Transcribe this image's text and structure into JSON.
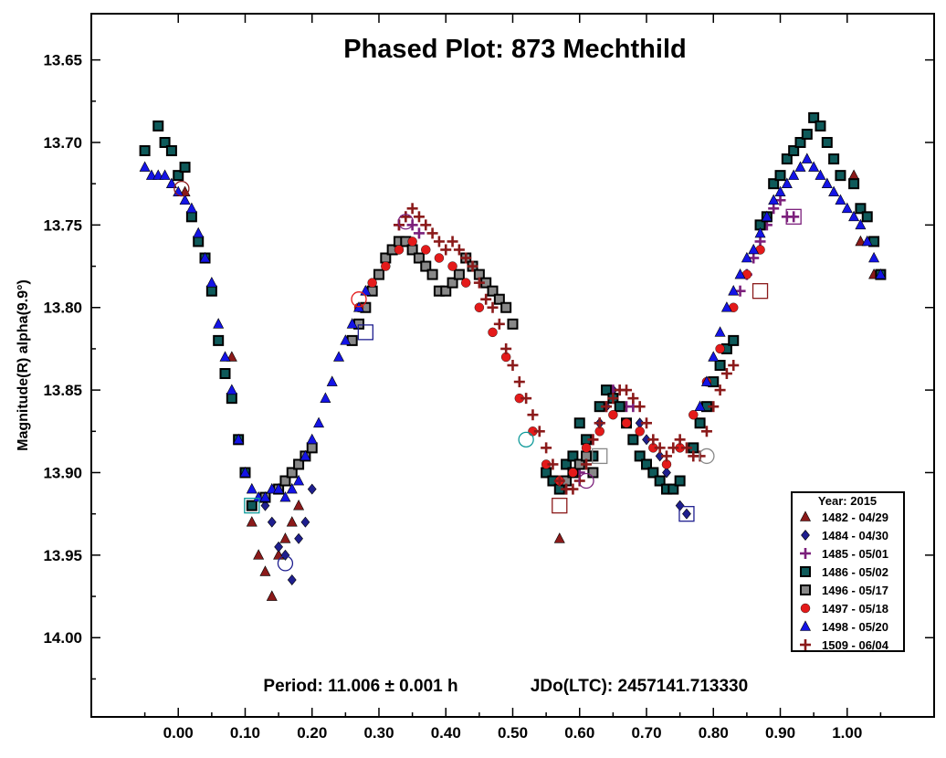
{
  "chart_data": {
    "type": "scatter",
    "title": "Phased Plot: 873 Mechthild",
    "xlabel": "",
    "ylabel": "Magnitude(R) alpha(9.9°)",
    "xlim": [
      -0.13,
      1.13
    ],
    "ylim": [
      13.622,
      14.048
    ],
    "y_inverted": true,
    "x_ticks": [
      "0.00",
      "0.10",
      "0.20",
      "0.30",
      "0.40",
      "0.50",
      "0.60",
      "0.70",
      "0.80",
      "0.90",
      "1.00"
    ],
    "y_ticks": [
      "13.65",
      "13.70",
      "13.75",
      "13.80",
      "13.85",
      "13.90",
      "13.95",
      "14.00"
    ],
    "grid": false,
    "legend_position": "bottom-right",
    "legend_title": "Year: 2015",
    "period_label": "Period: 11.006 ± 0.001 h",
    "epoch_label": "JDo(LTC): 2457141.713330",
    "series": [
      {
        "name": "1482 - 04/29",
        "marker": "triangle",
        "color": "#8b1a1a",
        "x": [
          0.01,
          0.03,
          0.05,
          0.08,
          0.11,
          0.12,
          0.13,
          0.14,
          0.15,
          0.16,
          0.17,
          0.18,
          1.01,
          1.02,
          1.04,
          0.57
        ],
        "y": [
          13.73,
          13.76,
          13.79,
          13.83,
          13.93,
          13.95,
          13.96,
          13.975,
          13.95,
          13.94,
          13.93,
          13.92,
          13.72,
          13.76,
          13.78,
          13.94
        ]
      },
      {
        "name": "1484 - 04/30",
        "marker": "diamond",
        "color": "#1f1f8f",
        "x": [
          0.13,
          0.14,
          0.15,
          0.16,
          0.17,
          0.18,
          0.19,
          0.2,
          0.63,
          0.64,
          0.65,
          0.66,
          0.67,
          0.68,
          0.69,
          0.7,
          0.72,
          0.73,
          0.74,
          0.75,
          0.76
        ],
        "y": [
          13.92,
          13.93,
          13.945,
          13.95,
          13.965,
          13.94,
          13.93,
          13.91,
          13.87,
          13.86,
          13.85,
          13.86,
          13.87,
          13.88,
          13.87,
          13.88,
          13.89,
          13.9,
          13.91,
          13.92,
          13.925
        ]
      },
      {
        "name": "1485 - 05/01",
        "marker": "plus",
        "color": "#7b1f7b",
        "x": [
          0.33,
          0.34,
          0.35,
          0.36,
          0.58,
          0.6,
          0.62,
          0.63,
          0.64,
          0.65,
          0.66,
          0.67,
          0.68,
          0.84,
          0.85,
          0.86,
          0.87,
          0.88,
          0.89,
          0.9,
          0.91,
          0.92
        ],
        "y": [
          13.75,
          13.745,
          13.75,
          13.755,
          13.91,
          13.9,
          13.88,
          13.87,
          13.86,
          13.85,
          13.85,
          13.86,
          13.86,
          13.79,
          13.78,
          13.77,
          13.76,
          13.75,
          13.74,
          13.735,
          13.745,
          13.745
        ]
      },
      {
        "name": "1486 - 05/02",
        "marker": "square",
        "color": "#0e5a5a",
        "x": [
          -0.05,
          -0.03,
          -0.02,
          -0.01,
          0.0,
          0.01,
          0.02,
          0.03,
          0.04,
          0.05,
          0.06,
          0.07,
          0.08,
          0.09,
          0.1,
          0.11,
          0.55,
          0.56,
          0.57,
          0.58,
          0.59,
          0.6,
          0.61,
          0.62,
          0.63,
          0.64,
          0.65,
          0.66,
          0.67,
          0.68,
          0.69,
          0.7,
          0.71,
          0.72,
          0.73,
          0.74,
          0.75,
          0.77,
          0.78,
          0.79,
          0.8,
          0.81,
          0.82,
          0.83,
          0.87,
          0.88,
          0.89,
          0.9,
          0.91,
          0.92,
          0.93,
          0.94,
          0.95,
          0.96,
          0.97,
          0.98,
          0.99,
          1.01,
          1.02,
          1.03,
          1.04,
          1.05
        ],
        "y": [
          13.705,
          13.69,
          13.7,
          13.705,
          13.72,
          13.715,
          13.745,
          13.76,
          13.77,
          13.79,
          13.82,
          13.84,
          13.855,
          13.88,
          13.9,
          13.92,
          13.9,
          13.905,
          13.91,
          13.895,
          13.89,
          13.87,
          13.88,
          13.89,
          13.86,
          13.85,
          13.855,
          13.86,
          13.87,
          13.88,
          13.89,
          13.895,
          13.9,
          13.905,
          13.91,
          13.91,
          13.905,
          13.885,
          13.87,
          13.86,
          13.845,
          13.835,
          13.825,
          13.82,
          13.75,
          13.745,
          13.725,
          13.72,
          13.71,
          13.705,
          13.7,
          13.695,
          13.685,
          13.69,
          13.7,
          13.71,
          13.72,
          13.725,
          13.74,
          13.745,
          13.76,
          13.78
        ]
      },
      {
        "name": "1496 - 05/17",
        "marker": "square",
        "color": "#888888",
        "x": [
          0.13,
          0.15,
          0.16,
          0.17,
          0.18,
          0.19,
          0.2,
          0.26,
          0.27,
          0.28,
          0.29,
          0.3,
          0.31,
          0.32,
          0.33,
          0.34,
          0.35,
          0.36,
          0.37,
          0.38,
          0.39,
          0.4,
          0.41,
          0.42,
          0.43,
          0.44,
          0.45,
          0.46,
          0.47,
          0.48,
          0.49,
          0.5,
          0.58,
          0.59,
          0.6,
          0.61,
          0.62
        ],
        "y": [
          13.915,
          13.91,
          13.905,
          13.9,
          13.895,
          13.89,
          13.885,
          13.82,
          13.81,
          13.8,
          13.79,
          13.78,
          13.77,
          13.765,
          13.76,
          13.76,
          13.765,
          13.77,
          13.775,
          13.78,
          13.79,
          13.79,
          13.785,
          13.78,
          13.77,
          13.775,
          13.78,
          13.785,
          13.79,
          13.795,
          13.8,
          13.81,
          13.905,
          13.9,
          13.895,
          13.89,
          13.9
        ]
      },
      {
        "name": "1497 - 05/18",
        "marker": "circle",
        "color": "#e41a1a",
        "x": [
          0.27,
          0.29,
          0.31,
          0.33,
          0.35,
          0.37,
          0.39,
          0.41,
          0.43,
          0.45,
          0.47,
          0.49,
          0.51,
          0.53,
          0.55,
          0.57,
          0.59,
          0.61,
          0.63,
          0.65,
          0.67,
          0.69,
          0.71,
          0.73,
          0.75,
          0.77,
          0.79,
          0.81,
          0.83,
          0.85,
          0.87
        ],
        "y": [
          13.8,
          13.785,
          13.775,
          13.765,
          13.76,
          13.765,
          13.77,
          13.775,
          13.785,
          13.8,
          13.815,
          13.83,
          13.855,
          13.875,
          13.895,
          13.905,
          13.9,
          13.885,
          13.875,
          13.865,
          13.87,
          13.875,
          13.885,
          13.895,
          13.885,
          13.865,
          13.845,
          13.825,
          13.8,
          13.78,
          13.765
        ]
      },
      {
        "name": "1498 - 05/20",
        "marker": "triangle",
        "color": "#1414e6",
        "x": [
          -0.05,
          -0.04,
          -0.03,
          -0.02,
          -0.01,
          0.0,
          0.01,
          0.02,
          0.03,
          0.04,
          0.05,
          0.06,
          0.07,
          0.08,
          0.09,
          0.1,
          0.11,
          0.12,
          0.13,
          0.14,
          0.15,
          0.16,
          0.17,
          0.18,
          0.19,
          0.2,
          0.21,
          0.22,
          0.23,
          0.24,
          0.25,
          0.26,
          0.27,
          0.28,
          0.78,
          0.79,
          0.8,
          0.81,
          0.82,
          0.83,
          0.84,
          0.85,
          0.86,
          0.87,
          0.88,
          0.89,
          0.9,
          0.91,
          0.92,
          0.93,
          0.94,
          0.95,
          0.96,
          0.97,
          0.98,
          0.99,
          1.0,
          1.01,
          1.02,
          1.03,
          1.04,
          1.05
        ],
        "y": [
          13.715,
          13.72,
          13.72,
          13.72,
          13.725,
          13.73,
          13.735,
          13.74,
          13.755,
          13.77,
          13.785,
          13.81,
          13.83,
          13.85,
          13.88,
          13.9,
          13.91,
          13.915,
          13.915,
          13.91,
          13.91,
          13.915,
          13.91,
          13.905,
          13.89,
          13.88,
          13.87,
          13.855,
          13.845,
          13.83,
          13.82,
          13.81,
          13.8,
          13.79,
          13.86,
          13.845,
          13.83,
          13.815,
          13.8,
          13.79,
          13.78,
          13.77,
          13.765,
          13.755,
          13.745,
          13.735,
          13.73,
          13.725,
          13.72,
          13.715,
          13.71,
          13.715,
          13.72,
          13.725,
          13.73,
          13.735,
          13.74,
          13.745,
          13.75,
          13.76,
          13.77,
          13.78
        ]
      },
      {
        "name": "1509 - 06/04",
        "marker": "plus",
        "color": "#8b1a1a",
        "x": [
          0.33,
          0.34,
          0.35,
          0.36,
          0.37,
          0.38,
          0.39,
          0.4,
          0.41,
          0.42,
          0.43,
          0.44,
          0.45,
          0.46,
          0.47,
          0.48,
          0.49,
          0.5,
          0.51,
          0.52,
          0.53,
          0.54,
          0.55,
          0.56,
          0.57,
          0.58,
          0.59,
          0.6,
          0.61,
          0.62,
          0.63,
          0.64,
          0.65,
          0.66,
          0.67,
          0.68,
          0.69,
          0.7,
          0.71,
          0.72,
          0.73,
          0.74,
          0.75,
          0.76,
          0.77,
          0.78,
          0.79,
          0.8,
          0.81,
          0.82,
          0.83
        ],
        "y": [
          13.75,
          13.745,
          13.74,
          13.745,
          13.75,
          13.755,
          13.76,
          13.765,
          13.76,
          13.765,
          13.77,
          13.775,
          13.785,
          13.795,
          13.8,
          13.81,
          13.825,
          13.835,
          13.845,
          13.855,
          13.865,
          13.875,
          13.885,
          13.895,
          13.905,
          13.91,
          13.91,
          13.905,
          13.895,
          13.88,
          13.87,
          13.86,
          13.855,
          13.85,
          13.85,
          13.855,
          13.86,
          13.87,
          13.88,
          13.885,
          13.89,
          13.885,
          13.88,
          13.885,
          13.89,
          13.89,
          13.875,
          13.86,
          13.85,
          13.84,
          13.835
        ]
      }
    ],
    "highlighted": [
      {
        "x": 0.005,
        "y": 13.728,
        "marker": "circle",
        "color": "#8b1a1a"
      },
      {
        "x": 0.16,
        "y": 13.955,
        "marker": "circle",
        "color": "#1f1f8f"
      },
      {
        "x": 0.11,
        "y": 13.92,
        "marker": "square",
        "color": "#0e9a9a"
      },
      {
        "x": 0.28,
        "y": 13.815,
        "marker": "square",
        "color": "#1f1f8f"
      },
      {
        "x": 0.27,
        "y": 13.795,
        "marker": "circle",
        "color": "#e41a1a"
      },
      {
        "x": 0.34,
        "y": 13.748,
        "marker": "circle",
        "color": "#7b1f7b"
      },
      {
        "x": 0.52,
        "y": 13.88,
        "marker": "circle",
        "color": "#0e9a9a"
      },
      {
        "x": 0.57,
        "y": 13.92,
        "marker": "square",
        "color": "#8b1a1a"
      },
      {
        "x": 0.63,
        "y": 13.89,
        "marker": "square",
        "color": "#888888"
      },
      {
        "x": 0.61,
        "y": 13.905,
        "marker": "circle",
        "color": "#7b1f7b"
      },
      {
        "x": 0.76,
        "y": 13.925,
        "marker": "square",
        "color": "#1f1f8f"
      },
      {
        "x": 0.79,
        "y": 13.89,
        "marker": "circle",
        "color": "#888888"
      },
      {
        "x": 0.87,
        "y": 13.79,
        "marker": "square",
        "color": "#8b1a1a"
      },
      {
        "x": 0.92,
        "y": 13.745,
        "marker": "square",
        "color": "#7b1f7b"
      }
    ]
  }
}
